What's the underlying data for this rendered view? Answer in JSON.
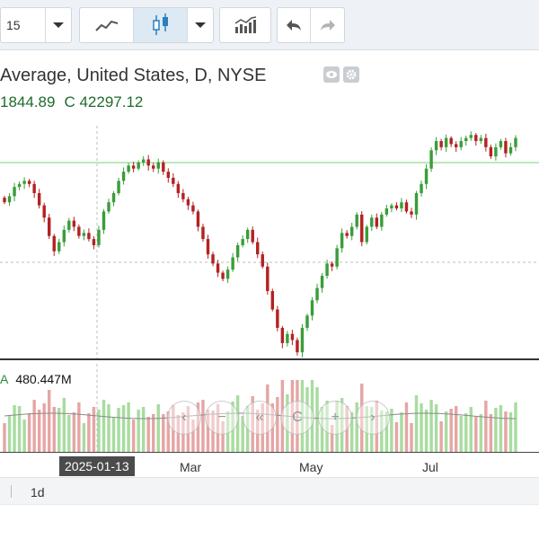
{
  "toolbar": {
    "interval_label": "15",
    "icons": [
      "chevron-down-icon",
      "line-chart-icon",
      "candlestick-icon",
      "chevron-down-icon",
      "indicators-icon",
      "undo-icon",
      "redo-icon"
    ]
  },
  "legend": {
    "title": "Average, United States, D, NYSE",
    "value_left": "1844.89",
    "close_label": "C",
    "close_value": "42297.12",
    "icons": [
      "eye-icon",
      "settings-icon"
    ]
  },
  "volume": {
    "series_letter": "A",
    "value": "480.447M"
  },
  "time_axis": {
    "crosshair_date": "2025-01-13",
    "labels": [
      "Mar",
      "May",
      "Jul"
    ]
  },
  "bottom_bar": {
    "range": "1d"
  },
  "nav_buttons": [
    "zoom-out-icon",
    "minus-icon",
    "scroll-to-start-icon",
    "reset-icon",
    "plus-icon",
    "scroll-to-end-icon"
  ],
  "colors": {
    "up": "#3a9d3a",
    "down": "#b32222",
    "volume_up": "#a8dca0",
    "volume_down": "#e6a5a5",
    "highlight_line": "#a3e3a3",
    "toolbar_bg": "#eef2f6"
  },
  "chart_data": {
    "type": "candlestick",
    "x_labels": [
      "2025-01-13",
      "Mar",
      "May",
      "Jul"
    ],
    "price_close": [
      42100,
      42300,
      42600,
      42700,
      42800,
      42700,
      42400,
      42000,
      41600,
      41000,
      40500,
      40800,
      41200,
      41500,
      41300,
      41000,
      41100,
      40900,
      40700,
      41200,
      41800,
      42100,
      42400,
      42800,
      43100,
      43300,
      43200,
      43400,
      43500,
      43300,
      43200,
      43400,
      43100,
      42900,
      42700,
      42400,
      42200,
      42000,
      41800,
      41300,
      40900,
      40400,
      40100,
      39800,
      39600,
      39900,
      40300,
      40700,
      40900,
      41200,
      40800,
      40400,
      40000,
      39200,
      38600,
      38000,
      37500,
      37800,
      37600,
      37200,
      38000,
      38400,
      38900,
      39300,
      39700,
      40100,
      40000,
      40600,
      41100,
      41000,
      41300,
      41700,
      40800,
      41300,
      41600,
      41300,
      41700,
      41900,
      42000,
      41900,
      42100,
      41800,
      41700,
      42400,
      42700,
      43200,
      43800,
      44100,
      43900,
      44200,
      44000,
      43900,
      44100,
      44200,
      44300,
      44100,
      44200,
      43900,
      43600,
      43900,
      44100,
      43700,
      43900,
      44200
    ]
  }
}
